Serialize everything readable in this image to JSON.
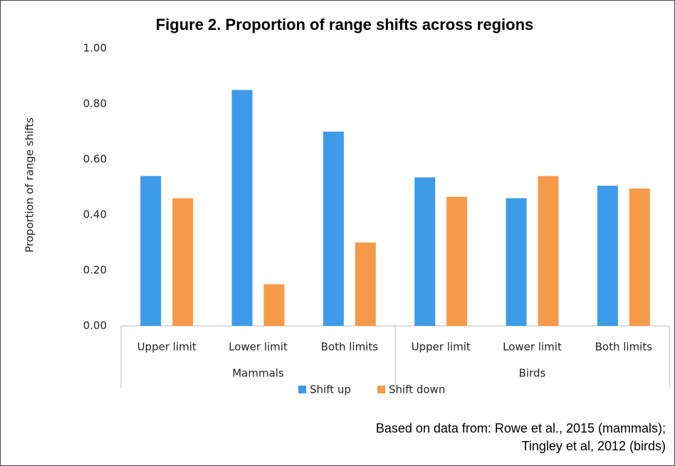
{
  "chart_data": {
    "type": "bar",
    "title": "Figure 2. Proportion of range shifts across regions",
    "y_label": "Proportion of range shifts",
    "categories": [
      "Upper limit",
      "Lower limit",
      "Both limits",
      "Upper limit",
      "Lower limit",
      "Both limits"
    ],
    "groups": [
      "Mammals",
      "Birds"
    ],
    "series": [
      {
        "name": "Shift up",
        "color": "#3d9be9",
        "values": [
          0.54,
          0.85,
          0.7,
          0.535,
          0.46,
          0.505
        ]
      },
      {
        "name": "Shift down",
        "color": "#f59a48",
        "values": [
          0.46,
          0.15,
          0.3,
          0.465,
          0.54,
          0.495
        ]
      }
    ],
    "ylim": [
      0,
      1
    ],
    "yticks": [
      {
        "value": 0,
        "label": "0.00"
      },
      {
        "value": 0.2,
        "label": "0.20"
      },
      {
        "value": 0.4,
        "label": "0.40"
      },
      {
        "value": 0.6,
        "label": "0.60"
      },
      {
        "value": 0.8,
        "label": "0.80"
      },
      {
        "value": 1,
        "label": "1.00"
      }
    ],
    "grid": false,
    "legend": "bottom",
    "source": [
      "Based on data from: Rowe et al., 2015 (mammals);",
      "Tingley et al, 2012 (birds)"
    ]
  }
}
